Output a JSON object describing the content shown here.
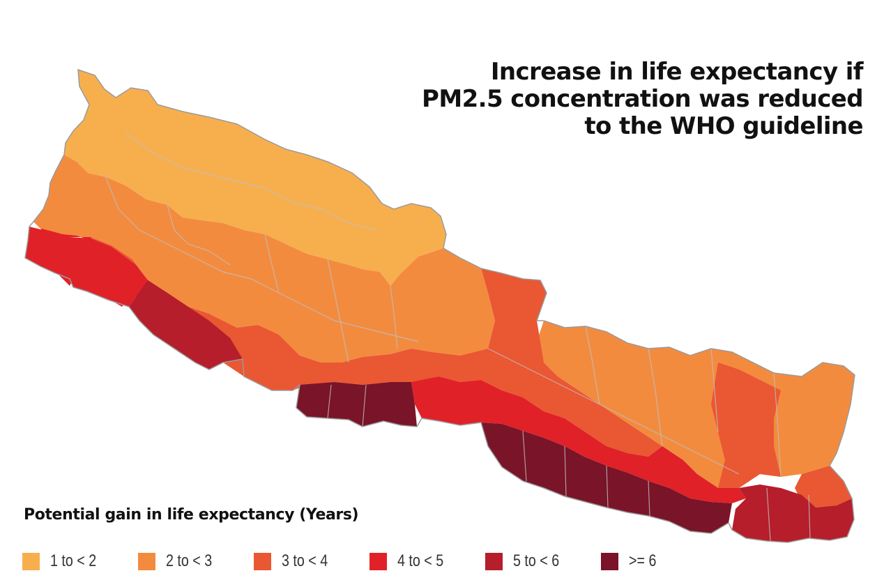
{
  "title": {
    "line1": "Increase in life expectancy if",
    "line2": "PM2.5 concentration was reduced",
    "line3": "to the WHO guideline"
  },
  "legend": {
    "title": "Potential gain in life expectancy (Years)",
    "items": [
      {
        "label": "1 to < 2",
        "color": "#F7AF4E"
      },
      {
        "label": "2 to < 3",
        "color": "#F38B3F"
      },
      {
        "label": "3 to < 4",
        "color": "#EA5733"
      },
      {
        "label": "4 to < 5",
        "color": "#E02128"
      },
      {
        "label": "5 to < 6",
        "color": "#B51E2A"
      },
      {
        "label": ">= 6",
        "color": "#7A1428"
      }
    ]
  },
  "map": {
    "region": "Nepal",
    "border_color": "#9a9a9a"
  }
}
